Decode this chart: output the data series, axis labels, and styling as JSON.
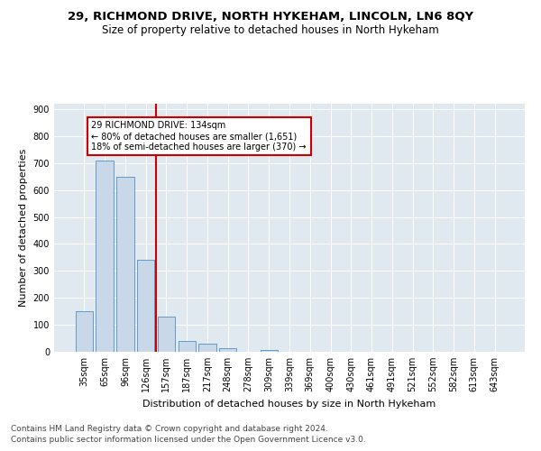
{
  "title": "29, RICHMOND DRIVE, NORTH HYKEHAM, LINCOLN, LN6 8QY",
  "subtitle": "Size of property relative to detached houses in North Hykeham",
  "xlabel": "Distribution of detached houses by size in North Hykeham",
  "ylabel": "Number of detached properties",
  "footnote1": "Contains HM Land Registry data © Crown copyright and database right 2024.",
  "footnote2": "Contains public sector information licensed under the Open Government Licence v3.0.",
  "categories": [
    "35sqm",
    "65sqm",
    "96sqm",
    "126sqm",
    "157sqm",
    "187sqm",
    "217sqm",
    "248sqm",
    "278sqm",
    "309sqm",
    "339sqm",
    "369sqm",
    "400sqm",
    "430sqm",
    "461sqm",
    "491sqm",
    "521sqm",
    "552sqm",
    "582sqm",
    "613sqm",
    "643sqm"
  ],
  "values": [
    150,
    710,
    650,
    340,
    130,
    40,
    30,
    12,
    0,
    8,
    0,
    0,
    0,
    0,
    0,
    0,
    0,
    0,
    0,
    0,
    0
  ],
  "bar_color": "#c8d8e8",
  "bar_edge_color": "#5090c0",
  "vline_x": 3.5,
  "vline_color": "#cc0000",
  "annotation_text": "29 RICHMOND DRIVE: 134sqm\n← 80% of detached houses are smaller (1,651)\n18% of semi-detached houses are larger (370) →",
  "annotation_box_color": "#ffffff",
  "annotation_box_edgecolor": "#cc0000",
  "ylim": [
    0,
    920
  ],
  "yticks": [
    0,
    100,
    200,
    300,
    400,
    500,
    600,
    700,
    800,
    900
  ],
  "bg_color": "#e0e8f0",
  "fig_bg_color": "#ffffff",
  "title_fontsize": 9.5,
  "subtitle_fontsize": 8.5,
  "xlabel_fontsize": 8,
  "ylabel_fontsize": 8,
  "tick_fontsize": 7,
  "footnote_fontsize": 6.5
}
